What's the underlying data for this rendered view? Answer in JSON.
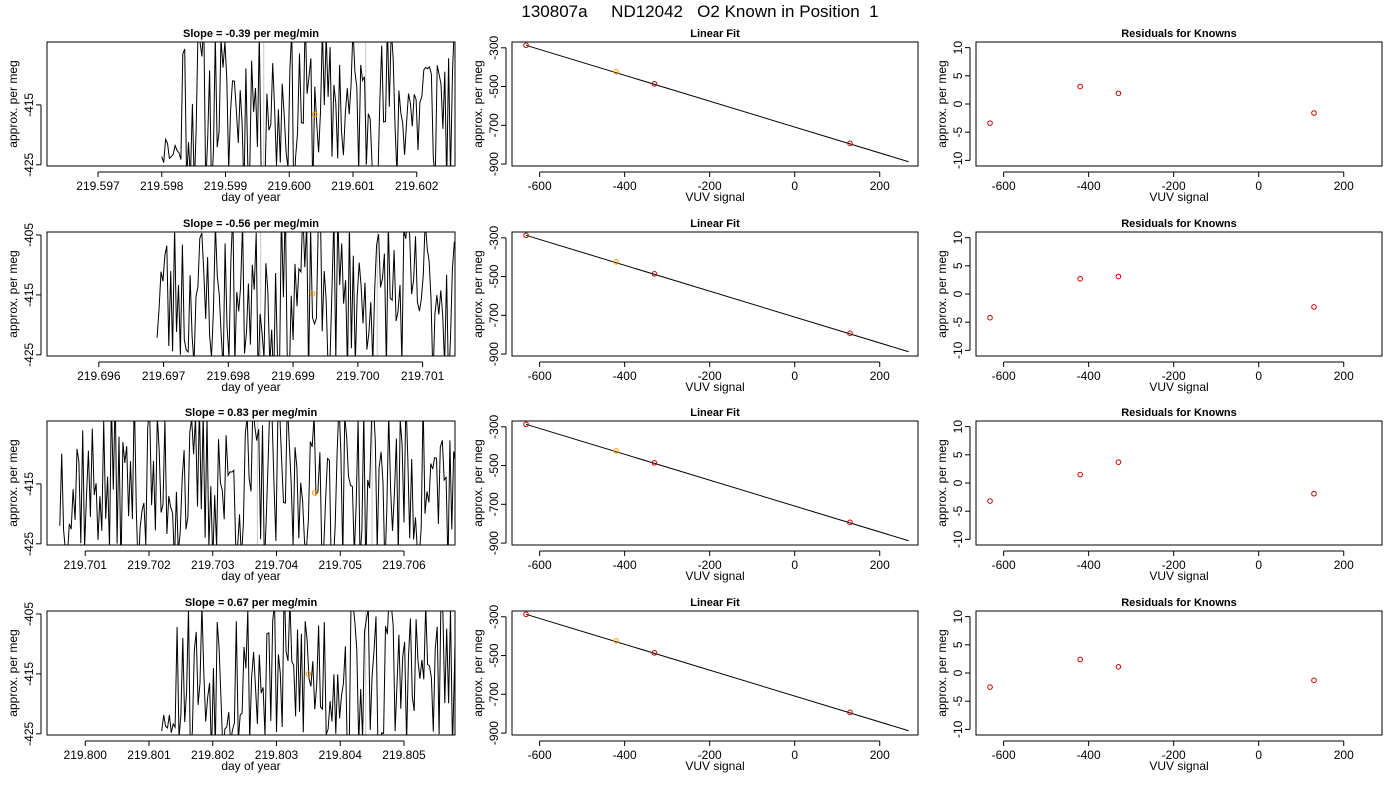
{
  "page": {
    "title": "130807a     ND12042   O2 Known in Position  1"
  },
  "colors": {
    "line": "#000000",
    "frame": "#000000",
    "marker_red": "#cc0000",
    "marker_orange": "#ff9900",
    "vline_gray": "#c8c8c8"
  },
  "chart_data": [
    {
      "type": "line",
      "row": 1,
      "col": 1,
      "title": "Slope =  -0.39  per meg/min",
      "xlabel": "day of year",
      "ylabel": "approx. per meg",
      "xlim": [
        219.5962,
        219.6026
      ],
      "ylim": [
        -425.2,
        -404.5
      ],
      "xticks": [
        219.597,
        219.598,
        219.599,
        219.6,
        219.601,
        219.602
      ],
      "xtick_labels": [
        "219.597",
        "219.598",
        "219.599",
        "219.600",
        "219.601",
        "219.602"
      ],
      "yticks": [
        -415,
        -425
      ],
      "ytick_labels": [
        "-415",
        "-425"
      ],
      "start": 219.598,
      "step": 3e-05,
      "seed": 11,
      "late": 0.3,
      "span_start": 0.06,
      "vlines": [
        219.5996,
        219.6012
      ],
      "point": {
        "x": 219.6004,
        "y": -416.6
      }
    },
    {
      "type": "line",
      "row": 1,
      "col": 2,
      "title": "Linear Fit",
      "xlabel": "VUV signal",
      "ylabel": "approx. per meg",
      "xlim": [
        -665,
        290
      ],
      "ylim": [
        -910,
        -270
      ],
      "xticks": [
        -600,
        -400,
        -200,
        0,
        200
      ],
      "xtick_labels": [
        "-600",
        "-400",
        "-200",
        "0",
        "200"
      ],
      "yticks": [
        -300,
        -500,
        -700,
        -900
      ],
      "ytick_labels": [
        "-300",
        "-500",
        "-700",
        "-900"
      ],
      "fit_line": {
        "x": [
          -632,
          268
        ],
        "y": [
          -287,
          -888
        ]
      },
      "points": [
        {
          "x": -632,
          "y": -287,
          "color": "red"
        },
        {
          "x": -420,
          "y": -424,
          "color": "orange"
        },
        {
          "x": -330,
          "y": -486,
          "color": "red"
        },
        {
          "x": 130,
          "y": -793,
          "color": "red"
        }
      ]
    },
    {
      "type": "scatter",
      "row": 1,
      "col": 3,
      "title": "Residuals for Knowns",
      "xlabel": "VUV signal",
      "ylabel": "approx. per meg",
      "xlim": [
        -665,
        290
      ],
      "ylim": [
        -11,
        11
      ],
      "xticks": [
        -600,
        -400,
        -200,
        0,
        200
      ],
      "xtick_labels": [
        "-600",
        "-400",
        "-200",
        "0",
        "200"
      ],
      "yticks": [
        10,
        5,
        0,
        -5,
        -10
      ],
      "ytick_labels": [
        "10",
        "5",
        "0",
        "-5",
        "-10"
      ],
      "points": [
        {
          "x": -632,
          "y": -3.4
        },
        {
          "x": -420,
          "y": 3.1
        },
        {
          "x": -330,
          "y": 1.9
        },
        {
          "x": 130,
          "y": -1.6
        }
      ]
    },
    {
      "type": "line",
      "row": 2,
      "col": 1,
      "title": "Slope =  -0.56  per meg/min",
      "xlabel": "day of year",
      "ylabel": "approx. per meg",
      "xlim": [
        219.6952,
        219.7015
      ],
      "ylim": [
        -425.2,
        -404.5
      ],
      "xticks": [
        219.696,
        219.697,
        219.698,
        219.699,
        219.7,
        219.701
      ],
      "xtick_labels": [
        "219.696",
        "219.697",
        "219.698",
        "219.699",
        "219.700",
        "219.701"
      ],
      "yticks": [
        -405,
        -415,
        -425
      ],
      "ytick_labels": [
        "-405",
        "-415",
        "-425"
      ],
      "start": 219.6969,
      "step": 3e-05,
      "seed": 23,
      "late": 0.0,
      "span_start": 0.0,
      "vlines": [
        219.6985,
        219.7003
      ],
      "point": {
        "x": 219.6993,
        "y": -414.8
      }
    },
    {
      "type": "line",
      "row": 2,
      "col": 2,
      "title": "Linear Fit",
      "xlabel": "VUV signal",
      "ylabel": "approx. per meg",
      "xlim": [
        -665,
        290
      ],
      "ylim": [
        -910,
        -270
      ],
      "xticks": [
        -600,
        -400,
        -200,
        0,
        200
      ],
      "xtick_labels": [
        "-600",
        "-400",
        "-200",
        "0",
        "200"
      ],
      "yticks": [
        -300,
        -500,
        -700,
        -900
      ],
      "ytick_labels": [
        "-300",
        "-500",
        "-700",
        "-900"
      ],
      "fit_line": {
        "x": [
          -632,
          268
        ],
        "y": [
          -287,
          -888
        ]
      },
      "points": [
        {
          "x": -632,
          "y": -287,
          "color": "red"
        },
        {
          "x": -420,
          "y": -424,
          "color": "orange"
        },
        {
          "x": -330,
          "y": -486,
          "color": "red"
        },
        {
          "x": 130,
          "y": -793,
          "color": "red"
        }
      ]
    },
    {
      "type": "scatter",
      "row": 2,
      "col": 3,
      "title": "Residuals for Knowns",
      "xlabel": "VUV signal",
      "ylabel": "approx. per meg",
      "xlim": [
        -665,
        290
      ],
      "ylim": [
        -11,
        11
      ],
      "xticks": [
        -600,
        -400,
        -200,
        0,
        200
      ],
      "xtick_labels": [
        "-600",
        "-400",
        "-200",
        "0",
        "200"
      ],
      "yticks": [
        10,
        5,
        0,
        -5,
        -10
      ],
      "ytick_labels": [
        "10",
        "5",
        "0",
        "-5",
        "-10"
      ],
      "points": [
        {
          "x": -632,
          "y": -4.2
        },
        {
          "x": -420,
          "y": 2.7
        },
        {
          "x": -330,
          "y": 3.1
        },
        {
          "x": 130,
          "y": -2.3
        }
      ]
    },
    {
      "type": "line",
      "row": 3,
      "col": 1,
      "title": "Slope =  0.83  per meg/min",
      "xlabel": "day of year",
      "ylabel": "approx. per meg",
      "xlim": [
        219.7004,
        219.7068
      ],
      "ylim": [
        -425.2,
        -404.5
      ],
      "xticks": [
        219.701,
        219.702,
        219.703,
        219.704,
        219.705,
        219.706
      ],
      "xtick_labels": [
        "219.701",
        "219.702",
        "219.703",
        "219.704",
        "219.705",
        "219.706"
      ],
      "yticks": [
        -415,
        -425
      ],
      "ytick_labels": [
        "-415",
        "-425"
      ],
      "start": 219.7006,
      "step": 3e-05,
      "seed": 37,
      "late": 0.0,
      "span_start": 0.0,
      "vlines": [
        219.7037,
        219.7055
      ],
      "point": {
        "x": 219.7046,
        "y": -416.5
      }
    },
    {
      "type": "line",
      "row": 3,
      "col": 2,
      "title": "Linear Fit",
      "xlabel": "VUV signal",
      "ylabel": "approx. per meg",
      "xlim": [
        -665,
        290
      ],
      "ylim": [
        -910,
        -270
      ],
      "xticks": [
        -600,
        -400,
        -200,
        0,
        200
      ],
      "xtick_labels": [
        "-600",
        "-400",
        "-200",
        "0",
        "200"
      ],
      "yticks": [
        -300,
        -500,
        -700,
        -900
      ],
      "ytick_labels": [
        "-300",
        "-500",
        "-700",
        "-900"
      ],
      "fit_line": {
        "x": [
          -632,
          268
        ],
        "y": [
          -287,
          -888
        ]
      },
      "points": [
        {
          "x": -632,
          "y": -287,
          "color": "red"
        },
        {
          "x": -420,
          "y": -424,
          "color": "orange"
        },
        {
          "x": -330,
          "y": -486,
          "color": "red"
        },
        {
          "x": 130,
          "y": -793,
          "color": "red"
        }
      ]
    },
    {
      "type": "scatter",
      "row": 3,
      "col": 3,
      "title": "Residuals for Knowns",
      "xlabel": "VUV signal",
      "ylabel": "approx. per meg",
      "xlim": [
        -665,
        290
      ],
      "ylim": [
        -11,
        11
      ],
      "xticks": [
        -600,
        -400,
        -200,
        0,
        200
      ],
      "xtick_labels": [
        "-600",
        "-400",
        "-200",
        "0",
        "200"
      ],
      "yticks": [
        10,
        5,
        0,
        -5,
        -10
      ],
      "ytick_labels": [
        "10",
        "5",
        "0",
        "-5",
        "-10"
      ],
      "points": [
        {
          "x": -632,
          "y": -3.2
        },
        {
          "x": -420,
          "y": 1.5
        },
        {
          "x": -330,
          "y": 3.7
        },
        {
          "x": 130,
          "y": -1.9
        }
      ]
    },
    {
      "type": "line",
      "row": 4,
      "col": 1,
      "title": "Slope =  0.67  per meg/min",
      "xlabel": "day of year",
      "ylabel": "approx. per meg",
      "xlim": [
        219.7994,
        219.8058
      ],
      "ylim": [
        -425.2,
        -404.5
      ],
      "xticks": [
        219.8,
        219.801,
        219.802,
        219.803,
        219.804,
        219.805
      ],
      "xtick_labels": [
        "219.800",
        "219.801",
        "219.802",
        "219.803",
        "219.804",
        "219.805"
      ],
      "yticks": [
        -405,
        -415,
        -425
      ],
      "ytick_labels": [
        "-405",
        "-415",
        "-425"
      ],
      "start": 219.8012,
      "step": 3e-05,
      "seed": 53,
      "late": 0.3,
      "span_start": 0.05,
      "vlines": [
        219.8044
      ],
      "point": {
        "x": 219.8035,
        "y": -415.0
      }
    },
    {
      "type": "line",
      "row": 4,
      "col": 2,
      "title": "Linear Fit",
      "xlabel": "VUV signal",
      "ylabel": "approx. per meg",
      "xlim": [
        -665,
        290
      ],
      "ylim": [
        -910,
        -270
      ],
      "xticks": [
        -600,
        -400,
        -200,
        0,
        200
      ],
      "xtick_labels": [
        "-600",
        "-400",
        "-200",
        "0",
        "200"
      ],
      "yticks": [
        -300,
        -500,
        -700,
        -900
      ],
      "ytick_labels": [
        "-300",
        "-500",
        "-700",
        "-900"
      ],
      "fit_line": {
        "x": [
          -632,
          268
        ],
        "y": [
          -287,
          -888
        ]
      },
      "points": [
        {
          "x": -632,
          "y": -287,
          "color": "red"
        },
        {
          "x": -420,
          "y": -424,
          "color": "orange"
        },
        {
          "x": -330,
          "y": -486,
          "color": "red"
        },
        {
          "x": 130,
          "y": -793,
          "color": "red"
        }
      ]
    },
    {
      "type": "scatter",
      "row": 4,
      "col": 3,
      "title": "Residuals for Knowns",
      "xlabel": "VUV signal",
      "ylabel": "approx. per meg",
      "xlim": [
        -665,
        290
      ],
      "ylim": [
        -11,
        11
      ],
      "xticks": [
        -600,
        -400,
        -200,
        0,
        200
      ],
      "xtick_labels": [
        "-600",
        "-400",
        "-200",
        "0",
        "200"
      ],
      "yticks": [
        10,
        5,
        0,
        -5,
        -10
      ],
      "ytick_labels": [
        "10",
        "5",
        "0",
        "-5",
        "-10"
      ],
      "points": [
        {
          "x": -632,
          "y": -2.5
        },
        {
          "x": -420,
          "y": 2.4
        },
        {
          "x": -330,
          "y": 1.1
        },
        {
          "x": 130,
          "y": -1.3
        }
      ]
    }
  ]
}
